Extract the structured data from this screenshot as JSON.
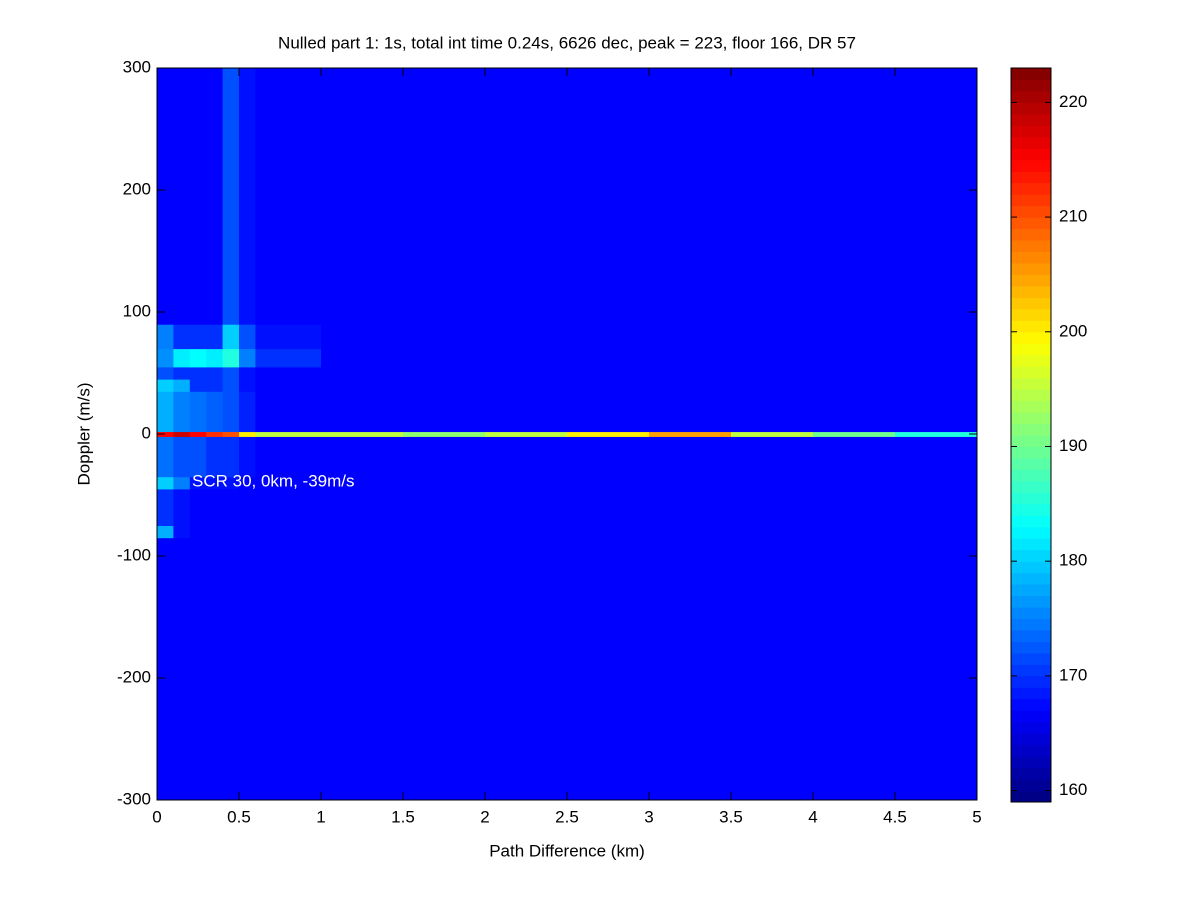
{
  "chart_data": {
    "type": "heatmap",
    "title": "Nulled part 1: 1s, total int time 0.24s, 6626 dec, peak = 223, floor 166, DR 57",
    "x_label": "Path Difference (km)",
    "y_label": "Doppler (m/s)",
    "annotations": [
      "SCR 30, 0km, -39m/s"
    ],
    "colormap": "jet",
    "xbins": [
      0,
      0.1,
      0.2,
      0.3,
      0.4,
      0.5,
      0.6,
      1,
      1.5,
      2,
      2.5,
      3,
      3.5,
      4,
      4.5,
      5
    ],
    "ybins": [
      -300,
      -85,
      -75,
      -45,
      -35,
      -2,
      2,
      35,
      45,
      55,
      70,
      90,
      300
    ],
    "z": [
      [
        167,
        167,
        167,
        167,
        167,
        167,
        167,
        167,
        167,
        167,
        167,
        167,
        167,
        167,
        167
      ],
      [
        178,
        168,
        167,
        167,
        167,
        167,
        167,
        167,
        167,
        167,
        167,
        167,
        167,
        167,
        167
      ],
      [
        170,
        168,
        167,
        167,
        167,
        167,
        167,
        167,
        167,
        167,
        167,
        167,
        167,
        167,
        167
      ],
      [
        180,
        175,
        168,
        168,
        168,
        167,
        167,
        167,
        167,
        167,
        167,
        167,
        167,
        167,
        167
      ],
      [
        174,
        172,
        172,
        170,
        170,
        168,
        167,
        167,
        167,
        167,
        167,
        167,
        167,
        167,
        167
      ],
      [
        215,
        218,
        215,
        212,
        210,
        200,
        195,
        195,
        192,
        195,
        200,
        205,
        195,
        190,
        185
      ],
      [
        178,
        175,
        174,
        173,
        172,
        169,
        167,
        167,
        167,
        167,
        167,
        167,
        167,
        167,
        167
      ],
      [
        180,
        178,
        170,
        170,
        172,
        168,
        167,
        167,
        167,
        167,
        167,
        167,
        167,
        167,
        167
      ],
      [
        172,
        170,
        170,
        170,
        172,
        168,
        167,
        167,
        167,
        167,
        167,
        167,
        167,
        167,
        167
      ],
      [
        176,
        182,
        183,
        182,
        185,
        175,
        170,
        167,
        167,
        167,
        167,
        167,
        167,
        167,
        167
      ],
      [
        175,
        170,
        170,
        170,
        180,
        172,
        168,
        167,
        167,
        167,
        167,
        167,
        167,
        167,
        167
      ],
      [
        167,
        167,
        167,
        167,
        172,
        168,
        167,
        167,
        167,
        167,
        167,
        167,
        167,
        167,
        167
      ]
    ],
    "xlim": [
      0,
      5
    ],
    "xticks": [
      0,
      0.5,
      1,
      1.5,
      2,
      2.5,
      3,
      3.5,
      4,
      4.5,
      5
    ],
    "ylim": [
      -300,
      300
    ],
    "yticks": [
      -300,
      -200,
      -100,
      0,
      100,
      200,
      300
    ],
    "clim": [
      159,
      223
    ],
    "cticks": [
      160,
      170,
      180,
      190,
      200,
      210,
      220
    ]
  }
}
